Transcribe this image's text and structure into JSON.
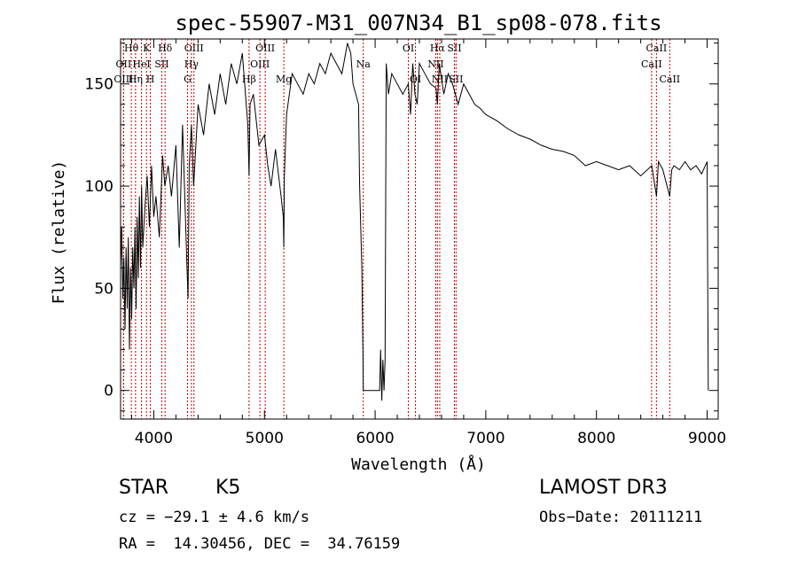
{
  "chart_data": {
    "type": "line",
    "title": "spec-55907-M31_007N34_B1_sp08-078.fits",
    "xlabel": "Wavelength (Å)",
    "ylabel": "Flux (relative)",
    "xlim": [
      3700,
      9100
    ],
    "ylim": [
      -14,
      172
    ],
    "xticks": [
      4000,
      5000,
      6000,
      7000,
      8000,
      9000
    ],
    "yticks": [
      0,
      50,
      100,
      150
    ],
    "series": [
      {
        "name": "flux",
        "x": [
          3700,
          3710,
          3720,
          3730,
          3740,
          3750,
          3760,
          3770,
          3780,
          3790,
          3800,
          3810,
          3820,
          3830,
          3840,
          3850,
          3860,
          3870,
          3880,
          3890,
          3900,
          3920,
          3940,
          3960,
          3980,
          4000,
          4020,
          4050,
          4080,
          4100,
          4130,
          4160,
          4200,
          4230,
          4260,
          4300,
          4310,
          4320,
          4340,
          4360,
          4400,
          4450,
          4500,
          4550,
          4600,
          4650,
          4700,
          4750,
          4800,
          4850,
          4861,
          4870,
          4900,
          4950,
          5000,
          5030,
          5060,
          5100,
          5150,
          5170,
          5175,
          5180,
          5200,
          5250,
          5300,
          5350,
          5400,
          5450,
          5500,
          5550,
          5600,
          5650,
          5700,
          5750,
          5780,
          5800,
          5850,
          5860,
          5880,
          5890,
          5893,
          5900,
          5950,
          6000,
          6040,
          6050,
          6060,
          6070,
          6080,
          6090,
          6100,
          6120,
          6150,
          6200,
          6250,
          6300,
          6320,
          6340,
          6360,
          6380,
          6400,
          6450,
          6500,
          6550,
          6563,
          6580,
          6620,
          6660,
          6700,
          6750,
          6800,
          6850,
          6900,
          6950,
          7000,
          7100,
          7200,
          7300,
          7400,
          7500,
          7600,
          7700,
          7800,
          7900,
          8000,
          8100,
          8200,
          8300,
          8400,
          8500,
          8542,
          8560,
          8600,
          8662,
          8680,
          8700,
          8750,
          8800,
          8850,
          8900,
          8950,
          9000,
          9010
        ],
        "values": [
          60,
          80,
          45,
          65,
          30,
          70,
          40,
          75,
          20,
          60,
          35,
          70,
          50,
          80,
          40,
          85,
          55,
          95,
          60,
          100,
          70,
          90,
          105,
          80,
          110,
          85,
          95,
          75,
          115,
          100,
          110,
          95,
          120,
          70,
          130,
          60,
          45,
          110,
          130,
          100,
          140,
          125,
          150,
          135,
          155,
          140,
          160,
          150,
          165,
          130,
          105,
          140,
          145,
          120,
          125,
          110,
          100,
          118,
          95,
          85,
          70,
          105,
          135,
          155,
          150,
          145,
          155,
          150,
          160,
          155,
          165,
          160,
          155,
          170,
          165,
          150,
          140,
          100,
          60,
          20,
          0,
          0,
          0,
          0,
          0,
          20,
          -5,
          15,
          0,
          15,
          160,
          145,
          155,
          150,
          145,
          150,
          135,
          160,
          145,
          140,
          160,
          155,
          150,
          148,
          140,
          160,
          145,
          155,
          150,
          140,
          150,
          145,
          140,
          138,
          135,
          132,
          128,
          125,
          123,
          120,
          118,
          117,
          115,
          110,
          112,
          110,
          108,
          110,
          105,
          110,
          95,
          112,
          108,
          95,
          108,
          110,
          108,
          112,
          108,
          110,
          106,
          112,
          0
        ]
      }
    ]
  },
  "spectral_lines": [
    {
      "label": "Hθ",
      "x": 3797,
      "row": 0
    },
    {
      "label": "OII",
      "x": 3727,
      "row": 1
    },
    {
      "label": "OIII",
      "x": 3727,
      "row": 2
    },
    {
      "label": "K",
      "x": 3934,
      "row": 0
    },
    {
      "label": "HeI",
      "x": 3889,
      "row": 1
    },
    {
      "label": "Hη",
      "x": 3835,
      "row": 2
    },
    {
      "label": "Hδ",
      "x": 4102,
      "row": 0
    },
    {
      "label": "SII",
      "x": 4072,
      "row": 1
    },
    {
      "label": "H",
      "x": 3969,
      "row": 2
    },
    {
      "label": "OIII",
      "x": 4363,
      "row": 0
    },
    {
      "label": "Hγ",
      "x": 4340,
      "row": 1
    },
    {
      "label": "G",
      "x": 4305,
      "row": 2
    },
    {
      "label": "OIII",
      "x": 5007,
      "row": 0
    },
    {
      "label": "OIII",
      "x": 4959,
      "row": 1
    },
    {
      "label": "Hβ",
      "x": 4861,
      "row": 2
    },
    {
      "label": "Mg",
      "x": 5175,
      "row": 2
    },
    {
      "label": "Na",
      "x": 5893,
      "row": 1
    },
    {
      "label": "OI",
      "x": 6300,
      "row": 0
    },
    {
      "label": "OI",
      "x": 6364,
      "row": 2
    },
    {
      "label": "Hα",
      "x": 6563,
      "row": 0
    },
    {
      "label": "SII",
      "x": 6716,
      "row": 0
    },
    {
      "label": "NII",
      "x": 6548,
      "row": 1
    },
    {
      "label": "NII",
      "x": 6584,
      "row": 2
    },
    {
      "label": "SII",
      "x": 6731,
      "row": 2
    },
    {
      "label": "CaII",
      "x": 8542,
      "row": 0
    },
    {
      "label": "CaII",
      "x": 8498,
      "row": 1
    },
    {
      "label": "CaII",
      "x": 8662,
      "row": 2
    }
  ],
  "info": {
    "object_class": "STAR",
    "subclass": "K5",
    "survey": "LAMOST DR3",
    "cz": "cz = −29.1 ± 4.6 km/s",
    "obs_date": "Obs−Date: 20111211",
    "radec": "RA =  14.30456, DEC =  34.76159"
  },
  "colors": {
    "line_marker": "#c00000",
    "spectrum": "#000000"
  }
}
